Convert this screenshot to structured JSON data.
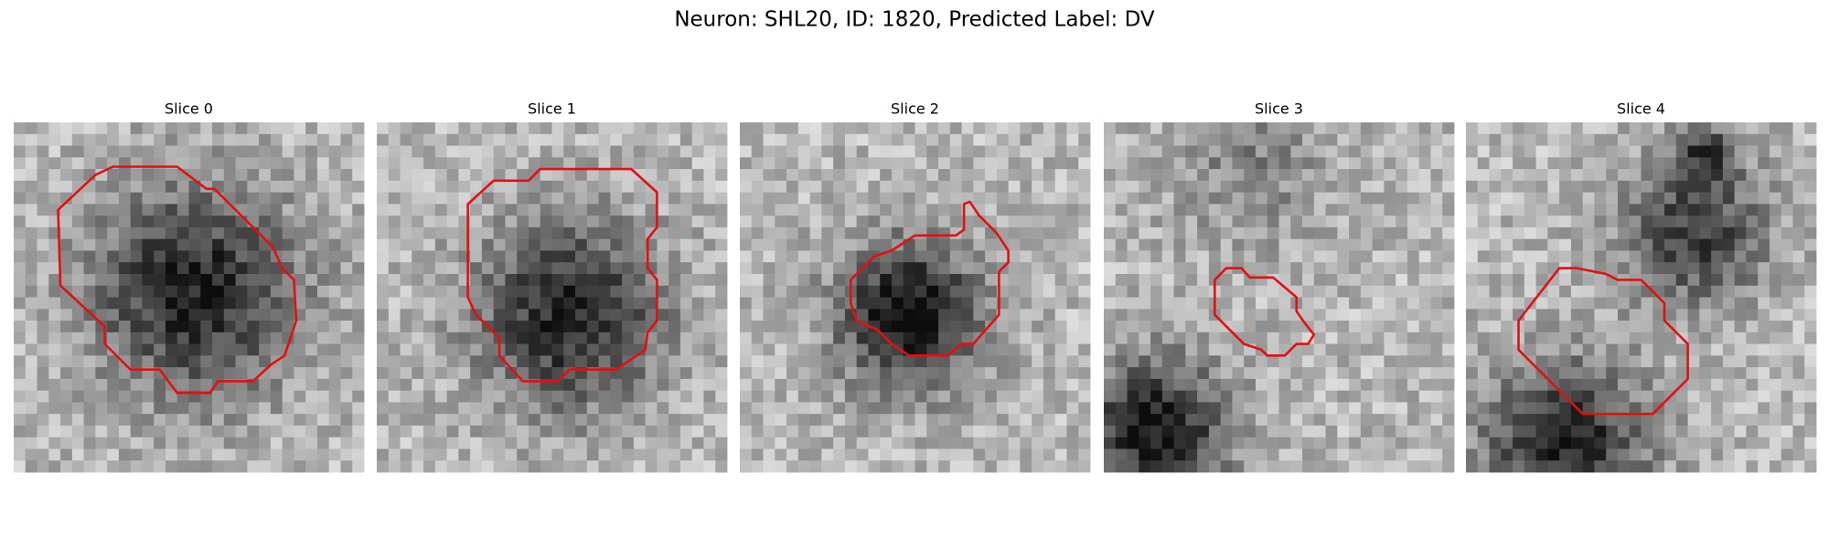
{
  "title": "Neuron: SHL20, ID: 1820, Predicted Label: DV",
  "panels": [
    {
      "title": "Slice 0"
    },
    {
      "title": "Slice 1"
    },
    {
      "title": "Slice 2"
    },
    {
      "title": "Slice 3"
    },
    {
      "title": "Slice 4"
    }
  ]
}
